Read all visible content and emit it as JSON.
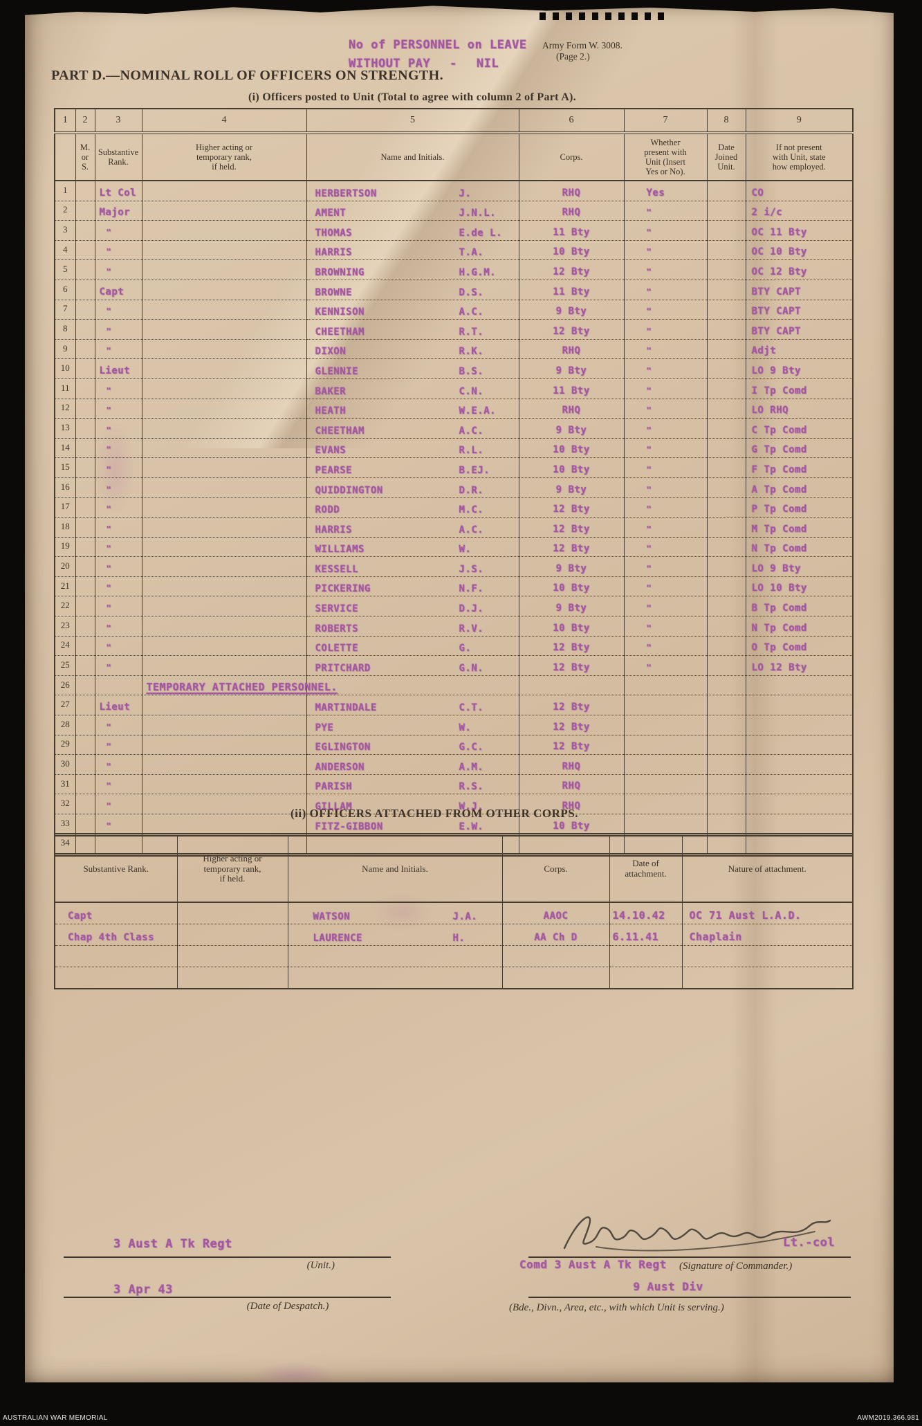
{
  "page": {
    "stamp_line1": "No of PERSONNEL on LEAVE",
    "stamp_line2_label": "WITHOUT PAY",
    "stamp_line2_sep": "-",
    "stamp_line2_value": "NIL",
    "form_name": "Army Form W. 3008.",
    "form_page": "(Page 2.)",
    "title": "PART D.—NOMINAL ROLL OF OFFICERS ON STRENGTH.",
    "subtitle": "(i) Officers posted to Unit (Total to agree with column 2 of Part A)."
  },
  "roll": {
    "col_numbers": [
      "1",
      "2",
      "3",
      "4",
      "5",
      "6",
      "7",
      "8",
      "9"
    ],
    "headers": [
      "",
      "M.\nor\nS.",
      "Substantive\nRank.",
      "Higher acting or\ntemporary rank,\nif held.",
      "Name and Initials.",
      "Corps.",
      "Whether\npresent with\nUnit (Insert\nYes or No).",
      "Date\nJoined\nUnit.",
      "If not present\nwith Unit, state\nhow employed."
    ],
    "rows": [
      {
        "no": "1",
        "ms": "",
        "rank": "Lt Col",
        "acting": "",
        "name": "HERBERTSON",
        "initials": "J.",
        "corps": "RHQ",
        "present": "Yes",
        "date": "",
        "employed": "CO"
      },
      {
        "no": "2",
        "ms": "",
        "rank": "Major",
        "acting": "",
        "name": "AMENT",
        "initials": "J.N.L.",
        "corps": "RHQ",
        "present": "\"",
        "date": "",
        "employed": "2 i/c"
      },
      {
        "no": "3",
        "ms": "",
        "rank": "\"",
        "acting": "",
        "name": "THOMAS",
        "initials": "E.de L.",
        "corps": "11 Bty",
        "present": "\"",
        "date": "",
        "employed": "OC 11 Bty"
      },
      {
        "no": "4",
        "ms": "",
        "rank": "\"",
        "acting": "",
        "name": "HARRIS",
        "initials": "T.A.",
        "corps": "10 Bty",
        "present": "\"",
        "date": "",
        "employed": "OC 10 Bty"
      },
      {
        "no": "5",
        "ms": "",
        "rank": "\"",
        "acting": "",
        "name": "BROWNING",
        "initials": "H.G.M.",
        "corps": "12 Bty",
        "present": "\"",
        "date": "",
        "employed": "OC 12 Bty"
      },
      {
        "no": "6",
        "ms": "",
        "rank": "Capt",
        "acting": "",
        "name": "BROWNE",
        "initials": "D.S.",
        "corps": "11 Bty",
        "present": "\"",
        "date": "",
        "employed": "BTY CAPT"
      },
      {
        "no": "7",
        "ms": "",
        "rank": "\"",
        "acting": "",
        "name": "KENNISON",
        "initials": "A.C.",
        "corps": "9 Bty",
        "present": "\"",
        "date": "",
        "employed": "BTY CAPT"
      },
      {
        "no": "8",
        "ms": "",
        "rank": "\"",
        "acting": "",
        "name": "CHEETHAM",
        "initials": "R.T.",
        "corps": "12 Bty",
        "present": "\"",
        "date": "",
        "employed": "BTY CAPT"
      },
      {
        "no": "9",
        "ms": "",
        "rank": "\"",
        "acting": "",
        "name": "DIXON",
        "initials": "R.K.",
        "corps": "RHQ",
        "present": "\"",
        "date": "",
        "employed": "Adjt"
      },
      {
        "no": "10",
        "ms": "",
        "rank": "Lieut",
        "acting": "",
        "name": "GLENNIE",
        "initials": "B.S.",
        "corps": "9 Bty",
        "present": "\"",
        "date": "",
        "employed": "LO 9 Bty"
      },
      {
        "no": "11",
        "ms": "",
        "rank": "\"",
        "acting": "",
        "name": "BAKER",
        "initials": "C.N.",
        "corps": "11 Bty",
        "present": "\"",
        "date": "",
        "employed": "I Tp Comd"
      },
      {
        "no": "12",
        "ms": "",
        "rank": "\"",
        "acting": "",
        "name": "HEATH",
        "initials": "W.E.A.",
        "corps": "RHQ",
        "present": "\"",
        "date": "",
        "employed": "LO RHQ"
      },
      {
        "no": "13",
        "ms": "",
        "rank": "\"",
        "acting": "",
        "name": "CHEETHAM",
        "initials": "A.C.",
        "corps": "9 Bty",
        "present": "\"",
        "date": "",
        "employed": "C Tp Comd"
      },
      {
        "no": "14",
        "ms": "",
        "rank": "\"",
        "acting": "",
        "name": "EVANS",
        "initials": "R.L.",
        "corps": "10 Bty",
        "present": "\"",
        "date": "",
        "employed": "G Tp Comd"
      },
      {
        "no": "15",
        "ms": "",
        "rank": "\"",
        "acting": "",
        "name": "PEARSE",
        "initials": "B.EJ.",
        "corps": "10 Bty",
        "present": "\"",
        "date": "",
        "employed": "F Tp Comd"
      },
      {
        "no": "16",
        "ms": "",
        "rank": "\"",
        "acting": "",
        "name": "QUIDDINGTON",
        "initials": "D.R.",
        "corps": "9 Bty",
        "present": "\"",
        "date": "",
        "employed": "A Tp Comd"
      },
      {
        "no": "17",
        "ms": "",
        "rank": "\"",
        "acting": "",
        "name": "RODD",
        "initials": "M.C.",
        "corps": "12 Bty",
        "present": "\"",
        "date": "",
        "employed": "P Tp Comd"
      },
      {
        "no": "18",
        "ms": "",
        "rank": "\"",
        "acting": "",
        "name": "HARRIS",
        "initials": "A.C.",
        "corps": "12 Bty",
        "present": "\"",
        "date": "",
        "employed": "M Tp Comd"
      },
      {
        "no": "19",
        "ms": "",
        "rank": "\"",
        "acting": "",
        "name": "WILLIAMS",
        "initials": "W.",
        "corps": "12 Bty",
        "present": "\"",
        "date": "",
        "employed": "N Tp Comd"
      },
      {
        "no": "20",
        "ms": "",
        "rank": "\"",
        "acting": "",
        "name": "KESSELL",
        "initials": "J.S.",
        "corps": "9 Bty",
        "present": "\"",
        "date": "",
        "employed": "LO 9 Bty"
      },
      {
        "no": "21",
        "ms": "",
        "rank": "\"",
        "acting": "",
        "name": "PICKERING",
        "initials": "N.F.",
        "corps": "10 Bty",
        "present": "\"",
        "date": "",
        "employed": "LO 10 Bty"
      },
      {
        "no": "22",
        "ms": "",
        "rank": "\"",
        "acting": "",
        "name": "SERVICE",
        "initials": "D.J.",
        "corps": "9 Bty",
        "present": "\"",
        "date": "",
        "employed": "B Tp Comd"
      },
      {
        "no": "23",
        "ms": "",
        "rank": "\"",
        "acting": "",
        "name": "ROBERTS",
        "initials": "R.V.",
        "corps": "10 Bty",
        "present": "\"",
        "date": "",
        "employed": "N Tp Comd"
      },
      {
        "no": "24",
        "ms": "",
        "rank": "\"",
        "acting": "",
        "name": "COLETTE",
        "initials": "G.",
        "corps": "12 Bty",
        "present": "\"",
        "date": "",
        "employed": "O Tp Comd"
      },
      {
        "no": "25",
        "ms": "",
        "rank": "\"",
        "acting": "",
        "name": "PRITCHARD",
        "initials": "G.N.",
        "corps": "12 Bty",
        "present": "\"",
        "date": "",
        "employed": "LO 12 Bty"
      },
      {
        "no": "26",
        "section": "TEMPORARY ATTACHED PERSONNEL."
      },
      {
        "no": "27",
        "ms": "",
        "rank": "Lieut",
        "acting": "",
        "name": "MARTINDALE",
        "initials": "C.T.",
        "corps": "12 Bty",
        "present": "",
        "date": "",
        "employed": ""
      },
      {
        "no": "28",
        "ms": "",
        "rank": "\"",
        "acting": "",
        "name": "PYE",
        "initials": "W.",
        "corps": "12 Bty",
        "present": "",
        "date": "",
        "employed": ""
      },
      {
        "no": "29",
        "ms": "",
        "rank": "\"",
        "acting": "",
        "name": "EGLINGTON",
        "initials": "G.C.",
        "corps": "12 Bty",
        "present": "",
        "date": "",
        "employed": ""
      },
      {
        "no": "30",
        "ms": "",
        "rank": "\"",
        "acting": "",
        "name": "ANDERSON",
        "initials": "A.M.",
        "corps": "RHQ",
        "present": "",
        "date": "",
        "employed": ""
      },
      {
        "no": "31",
        "ms": "",
        "rank": "\"",
        "acting": "",
        "name": "PARISH",
        "initials": "R.S.",
        "corps": "RHQ",
        "present": "",
        "date": "",
        "employed": ""
      },
      {
        "no": "32",
        "ms": "",
        "rank": "\"",
        "acting": "",
        "name": "GILLAM",
        "initials": "W.J.",
        "corps": "RHQ",
        "present": "",
        "date": "",
        "employed": ""
      },
      {
        "no": "33",
        "ms": "",
        "rank": "\"",
        "acting": "",
        "name": "FITZ-GIBBON",
        "initials": "E.W.",
        "corps": "10 Bty",
        "present": "",
        "date": "",
        "employed": ""
      },
      {
        "no": "34",
        "ms": "",
        "rank": "",
        "acting": "",
        "name": "",
        "initials": "",
        "corps": "",
        "present": "",
        "date": "",
        "employed": ""
      }
    ]
  },
  "attached": {
    "title": "(ii) OFFICERS ATTACHED FROM OTHER CORPS.",
    "headers": [
      "Substantive Rank.",
      "Higher acting or\ntemporary rank,\nif held.",
      "Name and Initials.",
      "Corps.",
      "Date of\nattachment.",
      "Nature of attachment."
    ],
    "rows": [
      {
        "rank": "Capt",
        "acting": "",
        "name": "WATSON",
        "initials": "J.A.",
        "corps": "AAOC",
        "date": "14.10.42",
        "nature": "OC 71 Aust L.A.D."
      },
      {
        "rank": "Chap 4th Class",
        "acting": "",
        "name": "LAURENCE",
        "initials": "H.",
        "corps": "AA Ch D",
        "date": "6.11.41",
        "nature": "Chaplain"
      },
      {
        "rank": "",
        "acting": "",
        "name": "",
        "initials": "",
        "corps": "",
        "date": "",
        "nature": ""
      },
      {
        "rank": "",
        "acting": "",
        "name": "",
        "initials": "",
        "corps": "",
        "date": "",
        "nature": ""
      }
    ]
  },
  "footer": {
    "unit_value": "3 Aust A Tk Regt",
    "unit_label": "(Unit.)",
    "date_value": "3 Apr  43",
    "date_label": "(Date of Despatch.)",
    "signature_rank": "Lt.-col",
    "comd_stamp_line1": "Comd 3 Aust A Tk Regt",
    "comd_stamp_line2": "9 Aust Div",
    "signature_label": "(Signature of Commander.)",
    "serving_label": "(Bde., Divn., Area, etc., with which Unit is serving.)"
  },
  "archive": {
    "left": "AUSTRALIAN WAR MEMORIAL",
    "right": "AWM2019.366.981"
  }
}
